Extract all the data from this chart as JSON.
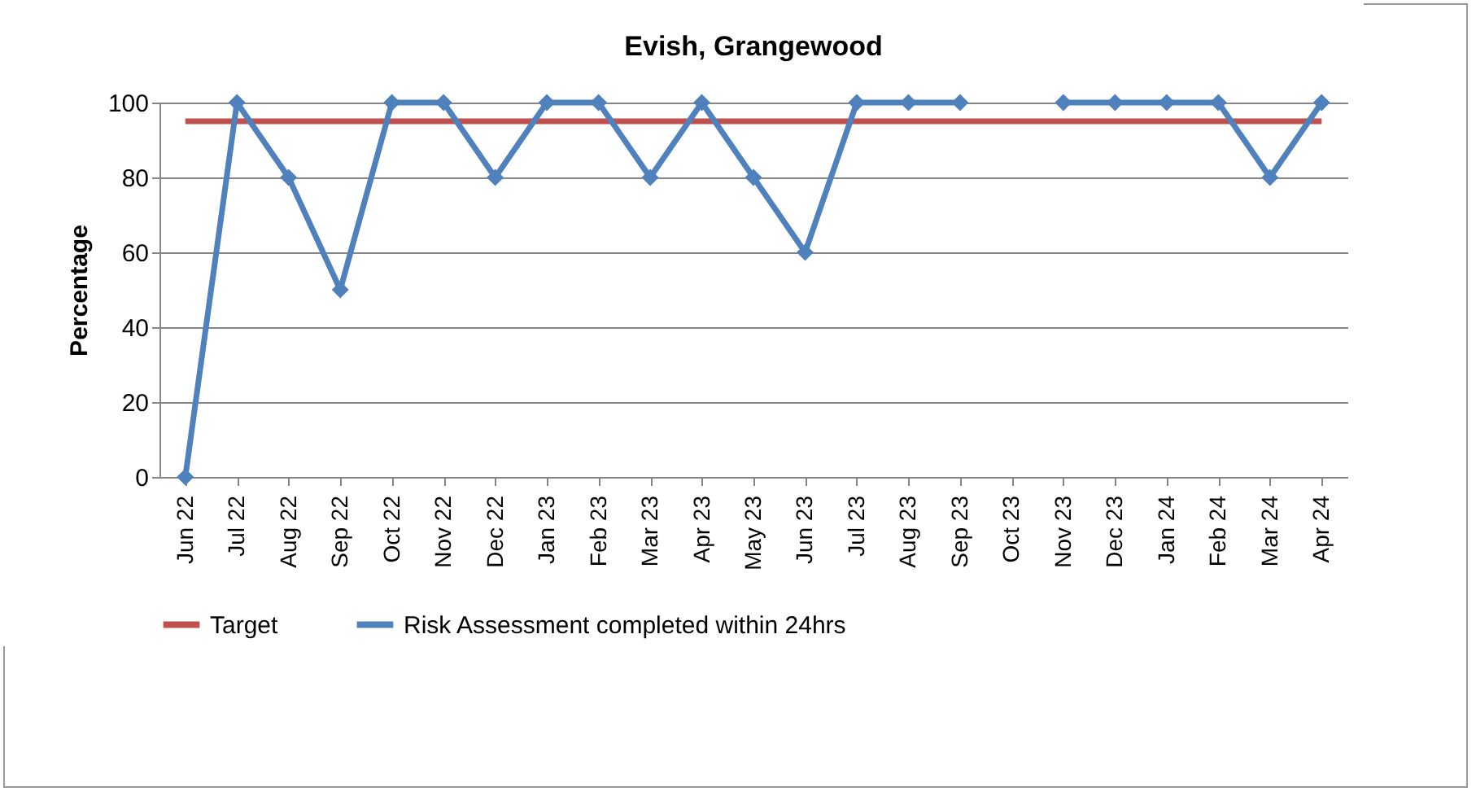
{
  "chart_data": {
    "type": "line",
    "title": "Evish, Grangewood",
    "ylabel": "Percentage",
    "categories": [
      "Jun 22",
      "Jul 22",
      "Aug 22",
      "Sep 22",
      "Oct 22",
      "Nov 22",
      "Dec 22",
      "Jan 23",
      "Feb 23",
      "Mar 23",
      "Apr 23",
      "May 23",
      "Jun 23",
      "Jul 23",
      "Aug 23",
      "Sep 23",
      "Oct 23",
      "Nov 23",
      "Dec 23",
      "Jan 24",
      "Feb 24",
      "Mar 24",
      "Apr 24"
    ],
    "series": [
      {
        "name": "Target",
        "color": "#c0504d",
        "values": [
          95,
          95,
          95,
          95,
          95,
          95,
          95,
          95,
          95,
          95,
          95,
          95,
          95,
          95,
          95,
          95,
          95,
          95,
          95,
          95,
          95,
          95,
          95
        ]
      },
      {
        "name": "Risk Assessment completed within 24hrs",
        "color": "#4f81bd",
        "marker": "diamond",
        "values": [
          0,
          100,
          80,
          50,
          100,
          100,
          80,
          100,
          100,
          80,
          100,
          80,
          60,
          100,
          100,
          100,
          null,
          100,
          100,
          100,
          100,
          80,
          100
        ]
      }
    ],
    "ylim": [
      0,
      100
    ],
    "yticks": [
      0,
      20,
      40,
      60,
      80,
      100
    ],
    "grid": "y",
    "legend": "bottom"
  }
}
